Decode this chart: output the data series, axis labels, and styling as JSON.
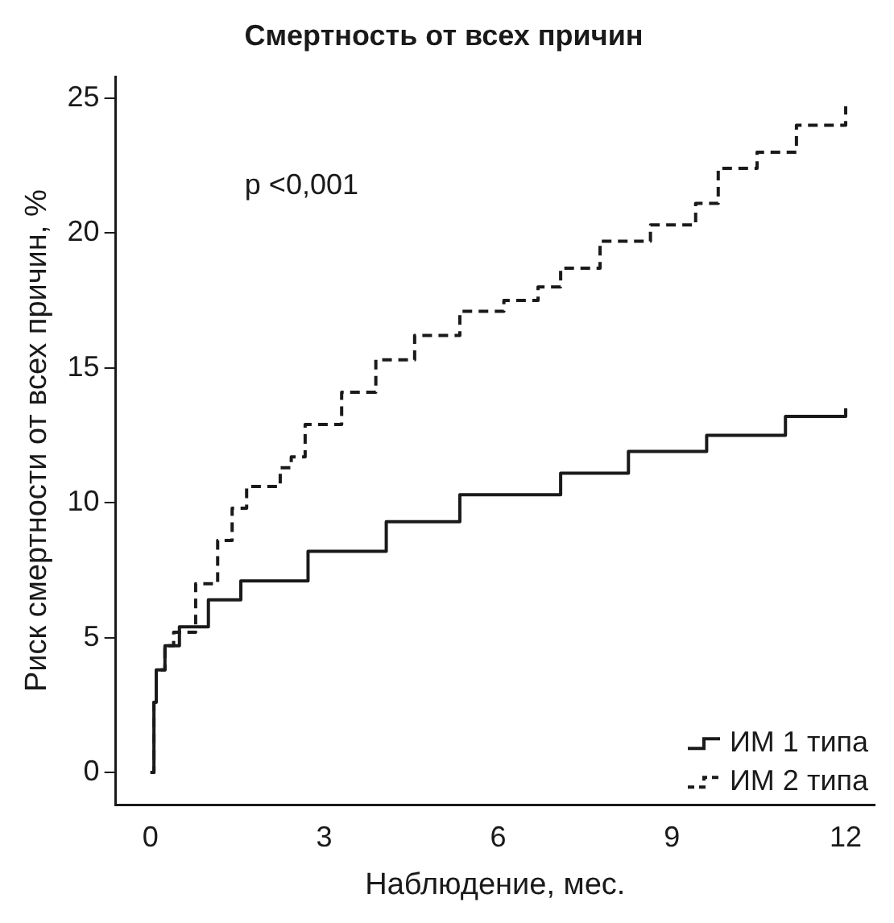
{
  "chart_data": {
    "type": "step",
    "title": "Смертность от всех причин",
    "xlabel": "Наблюдение, мес.",
    "ylabel": "Риск смертности от всех причин, %",
    "xlim": [
      -0.6,
      12.5
    ],
    "xticks": [
      0,
      3,
      6,
      9,
      12
    ],
    "ylim": [
      -1.2,
      25.8
    ],
    "yticks": [
      0,
      5,
      10,
      15,
      20,
      25
    ],
    "legend": "bottom right",
    "grid": false,
    "annotations": [
      "p <0,001"
    ],
    "series": [
      {
        "name": "ИМ 1 типа",
        "color": "#1a1a1a",
        "line_style": "solid",
        "x": [
          0,
          0.06,
          0.1,
          0.25,
          0.5,
          1.0,
          1.56,
          2.72,
          4.07,
          5.34,
          7.08,
          8.25,
          9.6,
          10.96,
          12.0
        ],
        "values": [
          0,
          2.6,
          3.8,
          4.7,
          5.4,
          6.4,
          7.1,
          8.2,
          9.3,
          10.3,
          11.1,
          11.9,
          12.5,
          13.2,
          13.5
        ]
      },
      {
        "name": "ИМ 2 типа",
        "color": "#1a1a1a",
        "line_style": "dashed",
        "x": [
          0,
          0.06,
          0.1,
          0.25,
          0.4,
          0.78,
          1.16,
          1.41,
          1.66,
          2.24,
          2.43,
          2.67,
          3.3,
          3.89,
          4.56,
          5.34,
          6.1,
          6.69,
          7.08,
          7.76,
          8.63,
          9.41,
          9.8,
          10.47,
          11.15,
          12.0
        ],
        "values": [
          0,
          2.6,
          3.8,
          4.7,
          5.2,
          7.0,
          8.6,
          9.8,
          10.6,
          11.3,
          11.7,
          12.9,
          14.1,
          15.3,
          16.2,
          17.1,
          17.5,
          18.0,
          18.7,
          19.7,
          20.3,
          21.1,
          22.4,
          23.0,
          24.0,
          24.7
        ]
      }
    ]
  }
}
